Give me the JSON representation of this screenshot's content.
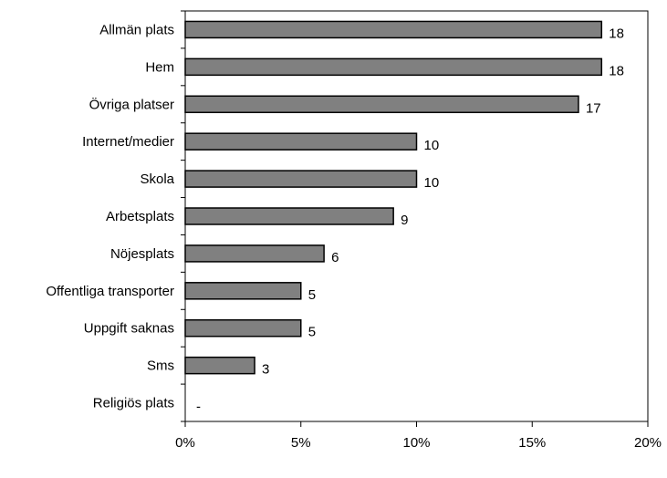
{
  "chart_data": {
    "type": "bar",
    "orientation": "horizontal",
    "categories": [
      "Allmän plats",
      "Hem",
      "Övriga platser",
      "Internet/medier",
      "Skola",
      "Arbetsplats",
      "Nöjesplats",
      "Offentliga transporter",
      "Uppgift saknas",
      "Sms",
      "Religiös plats"
    ],
    "values": [
      18,
      18,
      17,
      10,
      10,
      9,
      6,
      5,
      5,
      3,
      0
    ],
    "data_labels": [
      "18",
      "18",
      "17",
      "10",
      "10",
      "9",
      "6",
      "5",
      "5",
      "3",
      "-"
    ],
    "xlim": [
      0,
      20
    ],
    "x_ticks": [
      0,
      5,
      10,
      15,
      20
    ],
    "x_tick_labels": [
      "0%",
      "5%",
      "10%",
      "15%",
      "20%"
    ],
    "title": "",
    "xlabel": "",
    "ylabel": "",
    "grid": false,
    "legend": "none",
    "bar_color": "#808080",
    "bar_edge_color": "#000000"
  }
}
